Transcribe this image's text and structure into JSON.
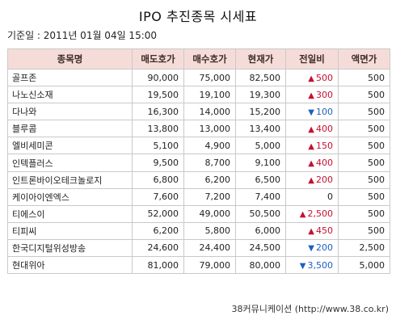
{
  "title": "IPO 추진종목 시세표",
  "basis": "기준일 : 2011년 01월 04일 15:00",
  "headers": [
    "종목명",
    "매도호가",
    "매수호가",
    "현재가",
    "전일비",
    "액면가"
  ],
  "rows": [
    {
      "name": "골프존",
      "sell": "90,000",
      "buy": "75,000",
      "price": "82,500",
      "dir": "up",
      "change": "500",
      "par": "500"
    },
    {
      "name": "나노신소재",
      "sell": "19,500",
      "buy": "19,100",
      "price": "19,300",
      "dir": "up",
      "change": "300",
      "par": "500"
    },
    {
      "name": "다나와",
      "sell": "16,300",
      "buy": "14,000",
      "price": "15,200",
      "dir": "down",
      "change": "100",
      "par": "500"
    },
    {
      "name": "블루콤",
      "sell": "13,800",
      "buy": "13,000",
      "price": "13,400",
      "dir": "up",
      "change": "400",
      "par": "500"
    },
    {
      "name": "엘비세미콘",
      "sell": "5,100",
      "buy": "4,900",
      "price": "5,000",
      "dir": "up",
      "change": "150",
      "par": "500"
    },
    {
      "name": "인텍플러스",
      "sell": "9,500",
      "buy": "8,700",
      "price": "9,100",
      "dir": "up",
      "change": "400",
      "par": "500"
    },
    {
      "name": "인트론바이오테크놀로지",
      "sell": "6,800",
      "buy": "6,200",
      "price": "6,500",
      "dir": "up",
      "change": "200",
      "par": "500"
    },
    {
      "name": "케이아이엔엑스",
      "sell": "7,600",
      "buy": "7,200",
      "price": "7,400",
      "dir": "flat",
      "change": "0",
      "par": "500"
    },
    {
      "name": "티에스이",
      "sell": "52,000",
      "buy": "49,000",
      "price": "50,500",
      "dir": "up",
      "change": "2,500",
      "par": "500"
    },
    {
      "name": "티피씨",
      "sell": "6,200",
      "buy": "5,800",
      "price": "6,000",
      "dir": "up",
      "change": "450",
      "par": "500"
    },
    {
      "name": "한국디지털위성방송",
      "sell": "24,600",
      "buy": "24,400",
      "price": "24,500",
      "dir": "down",
      "change": "200",
      "par": "2,500"
    },
    {
      "name": "현대위아",
      "sell": "81,000",
      "buy": "79,000",
      "price": "80,000",
      "dir": "down",
      "change": "3,500",
      "par": "5,000"
    }
  ],
  "arrows": {
    "up": "▲",
    "down": "▼",
    "flat": ""
  },
  "colors": {
    "up": "#c8102e",
    "down": "#1f5fbf",
    "header_bg": "#f6dcd8"
  },
  "footer": "38커뮤니케이션 (http://www.38.co.kr)"
}
